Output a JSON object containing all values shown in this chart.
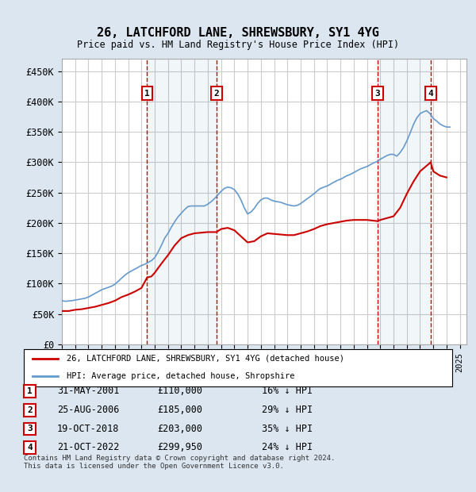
{
  "title": "26, LATCHFORD LANE, SHREWSBURY, SY1 4YG",
  "subtitle": "Price paid vs. HM Land Registry's House Price Index (HPI)",
  "ylabel_ticks": [
    "£0",
    "£50K",
    "£100K",
    "£150K",
    "£200K",
    "£250K",
    "£300K",
    "£350K",
    "£400K",
    "£450K"
  ],
  "ytick_values": [
    0,
    50000,
    100000,
    150000,
    200000,
    250000,
    300000,
    350000,
    400000,
    450000
  ],
  "ylim": [
    0,
    470000
  ],
  "xlim_start": 1995.0,
  "xlim_end": 2025.5,
  "transactions": [
    {
      "label": "1",
      "date": 2001.42,
      "price": 110000,
      "pct": "16%",
      "date_str": "31-MAY-2001"
    },
    {
      "label": "2",
      "date": 2006.65,
      "price": 185000,
      "pct": "29%",
      "date_str": "25-AUG-2006"
    },
    {
      "label": "3",
      "date": 2018.8,
      "price": 203000,
      "pct": "35%",
      "date_str": "19-OCT-2018"
    },
    {
      "label": "4",
      "date": 2022.8,
      "price": 299950,
      "pct": "24%",
      "date_str": "21-OCT-2022"
    }
  ],
  "hpi_color": "#6699cc",
  "price_color": "#cc0000",
  "background_color": "#dce6f0",
  "plot_bg_color": "#ffffff",
  "grid_color": "#cccccc",
  "transaction_line_color": "#cc0000",
  "transaction_box_color": "#cc0000",
  "legend_label_price": "26, LATCHFORD LANE, SHREWSBURY, SY1 4YG (detached house)",
  "legend_label_hpi": "HPI: Average price, detached house, Shropshire",
  "footer": "Contains HM Land Registry data © Crown copyright and database right 2024.\nThis data is licensed under the Open Government Licence v3.0.",
  "hpi_data": {
    "years": [
      1995.0,
      1995.25,
      1995.5,
      1995.75,
      1996.0,
      1996.25,
      1996.5,
      1996.75,
      1997.0,
      1997.25,
      1997.5,
      1997.75,
      1998.0,
      1998.25,
      1998.5,
      1998.75,
      1999.0,
      1999.25,
      1999.5,
      1999.75,
      2000.0,
      2000.25,
      2000.5,
      2000.75,
      2001.0,
      2001.25,
      2001.5,
      2001.75,
      2002.0,
      2002.25,
      2002.5,
      2002.75,
      2003.0,
      2003.25,
      2003.5,
      2003.75,
      2004.0,
      2004.25,
      2004.5,
      2004.75,
      2005.0,
      2005.25,
      2005.5,
      2005.75,
      2006.0,
      2006.25,
      2006.5,
      2006.75,
      2007.0,
      2007.25,
      2007.5,
      2007.75,
      2008.0,
      2008.25,
      2008.5,
      2008.75,
      2009.0,
      2009.25,
      2009.5,
      2009.75,
      2010.0,
      2010.25,
      2010.5,
      2010.75,
      2011.0,
      2011.25,
      2011.5,
      2011.75,
      2012.0,
      2012.25,
      2012.5,
      2012.75,
      2013.0,
      2013.25,
      2013.5,
      2013.75,
      2014.0,
      2014.25,
      2014.5,
      2014.75,
      2015.0,
      2015.25,
      2015.5,
      2015.75,
      2016.0,
      2016.25,
      2016.5,
      2016.75,
      2017.0,
      2017.25,
      2017.5,
      2017.75,
      2018.0,
      2018.25,
      2018.5,
      2018.75,
      2019.0,
      2019.25,
      2019.5,
      2019.75,
      2020.0,
      2020.25,
      2020.5,
      2020.75,
      2021.0,
      2021.25,
      2021.5,
      2021.75,
      2022.0,
      2022.25,
      2022.5,
      2022.75,
      2023.0,
      2023.25,
      2023.5,
      2023.75,
      2024.0,
      2024.25
    ],
    "values": [
      72000,
      71000,
      71500,
      72000,
      73000,
      74000,
      75000,
      76000,
      78000,
      81000,
      84000,
      87000,
      90000,
      92000,
      94000,
      96000,
      99000,
      104000,
      109000,
      114000,
      118000,
      121000,
      124000,
      127000,
      130000,
      132000,
      135000,
      138000,
      143000,
      152000,
      163000,
      175000,
      183000,
      193000,
      202000,
      210000,
      216000,
      222000,
      227000,
      228000,
      228000,
      228000,
      228000,
      228000,
      231000,
      235000,
      240000,
      246000,
      252000,
      257000,
      259000,
      258000,
      255000,
      248000,
      238000,
      225000,
      215000,
      218000,
      224000,
      232000,
      238000,
      241000,
      241000,
      238000,
      236000,
      235000,
      234000,
      232000,
      230000,
      229000,
      228000,
      229000,
      232000,
      236000,
      240000,
      244000,
      248000,
      253000,
      257000,
      259000,
      261000,
      264000,
      267000,
      270000,
      272000,
      275000,
      278000,
      280000,
      283000,
      286000,
      289000,
      291000,
      293000,
      296000,
      299000,
      301000,
      305000,
      308000,
      311000,
      313000,
      313000,
      310000,
      316000,
      324000,
      335000,
      348000,
      362000,
      373000,
      380000,
      383000,
      385000,
      380000,
      372000,
      368000,
      363000,
      360000,
      358000,
      358000
    ]
  },
  "price_data": {
    "years": [
      1995.0,
      1995.5,
      1996.0,
      1996.5,
      1997.0,
      1997.5,
      1998.0,
      1998.5,
      1999.0,
      1999.5,
      2000.0,
      2000.5,
      2001.0,
      2001.42,
      2001.75,
      2002.0,
      2002.5,
      2003.0,
      2003.5,
      2004.0,
      2004.5,
      2005.0,
      2005.5,
      2006.0,
      2006.65,
      2007.0,
      2007.5,
      2008.0,
      2008.5,
      2009.0,
      2009.5,
      2010.0,
      2010.5,
      2011.0,
      2011.5,
      2012.0,
      2012.5,
      2013.0,
      2013.5,
      2014.0,
      2014.5,
      2015.0,
      2015.5,
      2016.0,
      2016.5,
      2017.0,
      2017.5,
      2018.0,
      2018.8,
      2019.0,
      2019.5,
      2020.0,
      2020.5,
      2021.0,
      2021.5,
      2022.0,
      2022.8,
      2023.0,
      2023.5,
      2024.0
    ],
    "values": [
      55000,
      55000,
      57000,
      58000,
      60000,
      62000,
      65000,
      68000,
      72000,
      78000,
      82000,
      87000,
      93000,
      110000,
      112000,
      118000,
      133000,
      147000,
      163000,
      175000,
      180000,
      183000,
      184000,
      185000,
      185000,
      190000,
      192000,
      188000,
      178000,
      168000,
      170000,
      178000,
      183000,
      182000,
      181000,
      180000,
      180000,
      183000,
      186000,
      190000,
      195000,
      198000,
      200000,
      202000,
      204000,
      205000,
      205000,
      205000,
      203000,
      205000,
      208000,
      211000,
      225000,
      248000,
      268000,
      285000,
      299950,
      285000,
      278000,
      275000
    ]
  }
}
